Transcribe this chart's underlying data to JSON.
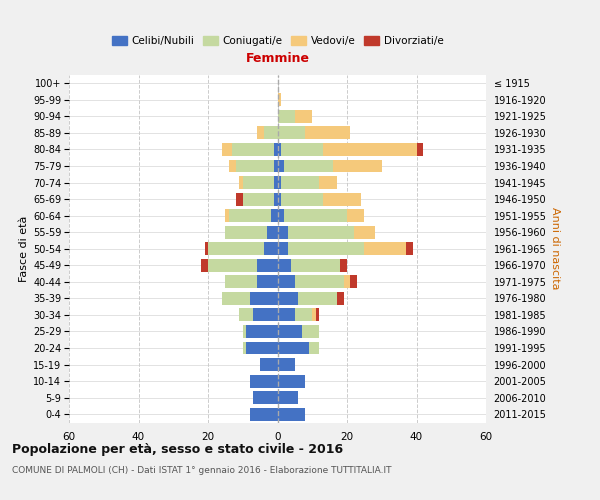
{
  "age_groups": [
    "0-4",
    "5-9",
    "10-14",
    "15-19",
    "20-24",
    "25-29",
    "30-34",
    "35-39",
    "40-44",
    "45-49",
    "50-54",
    "55-59",
    "60-64",
    "65-69",
    "70-74",
    "75-79",
    "80-84",
    "85-89",
    "90-94",
    "95-99",
    "100+"
  ],
  "birth_years": [
    "2011-2015",
    "2006-2010",
    "2001-2005",
    "1996-2000",
    "1991-1995",
    "1986-1990",
    "1981-1985",
    "1976-1980",
    "1971-1975",
    "1966-1970",
    "1961-1965",
    "1956-1960",
    "1951-1955",
    "1946-1950",
    "1941-1945",
    "1936-1940",
    "1931-1935",
    "1926-1930",
    "1921-1925",
    "1916-1920",
    "≤ 1915"
  ],
  "males": {
    "celibi": [
      8,
      7,
      8,
      5,
      9,
      9,
      7,
      8,
      6,
      6,
      4,
      3,
      2,
      1,
      1,
      1,
      1,
      0,
      0,
      0,
      0
    ],
    "coniugati": [
      0,
      0,
      0,
      0,
      1,
      1,
      4,
      8,
      9,
      14,
      16,
      12,
      12,
      9,
      9,
      11,
      12,
      4,
      0,
      0,
      0
    ],
    "vedovi": [
      0,
      0,
      0,
      0,
      0,
      0,
      0,
      0,
      0,
      0,
      0,
      0,
      1,
      0,
      1,
      2,
      3,
      2,
      0,
      0,
      0
    ],
    "divorziati": [
      0,
      0,
      0,
      0,
      0,
      0,
      0,
      0,
      0,
      2,
      1,
      0,
      0,
      2,
      0,
      0,
      0,
      0,
      0,
      0,
      0
    ]
  },
  "females": {
    "nubili": [
      8,
      6,
      8,
      5,
      9,
      7,
      5,
      6,
      5,
      4,
      3,
      3,
      2,
      1,
      1,
      2,
      1,
      0,
      0,
      0,
      0
    ],
    "coniugate": [
      0,
      0,
      0,
      0,
      3,
      5,
      5,
      11,
      14,
      14,
      22,
      19,
      18,
      12,
      11,
      14,
      12,
      8,
      5,
      0,
      0
    ],
    "vedove": [
      0,
      0,
      0,
      0,
      0,
      0,
      1,
      0,
      2,
      0,
      12,
      6,
      5,
      11,
      5,
      14,
      27,
      13,
      5,
      1,
      0
    ],
    "divorziate": [
      0,
      0,
      0,
      0,
      0,
      0,
      1,
      2,
      2,
      2,
      2,
      0,
      0,
      0,
      0,
      0,
      2,
      0,
      0,
      0,
      0
    ]
  },
  "colors": {
    "celibi": "#4472C4",
    "coniugati": "#C5D9A0",
    "vedovi": "#F5C97B",
    "divorziati": "#C0392B"
  },
  "xlim": 60,
  "title": "Popolazione per età, sesso e stato civile - 2016",
  "subtitle": "COMUNE DI PALMOLI (CH) - Dati ISTAT 1° gennaio 2016 - Elaborazione TUTTITALIA.IT",
  "ylabel_left": "Fasce di età",
  "ylabel_right": "Anni di nascita",
  "xlabel_right": "Femmine",
  "bg_color": "#f0f0f0",
  "plot_bg": "#ffffff"
}
